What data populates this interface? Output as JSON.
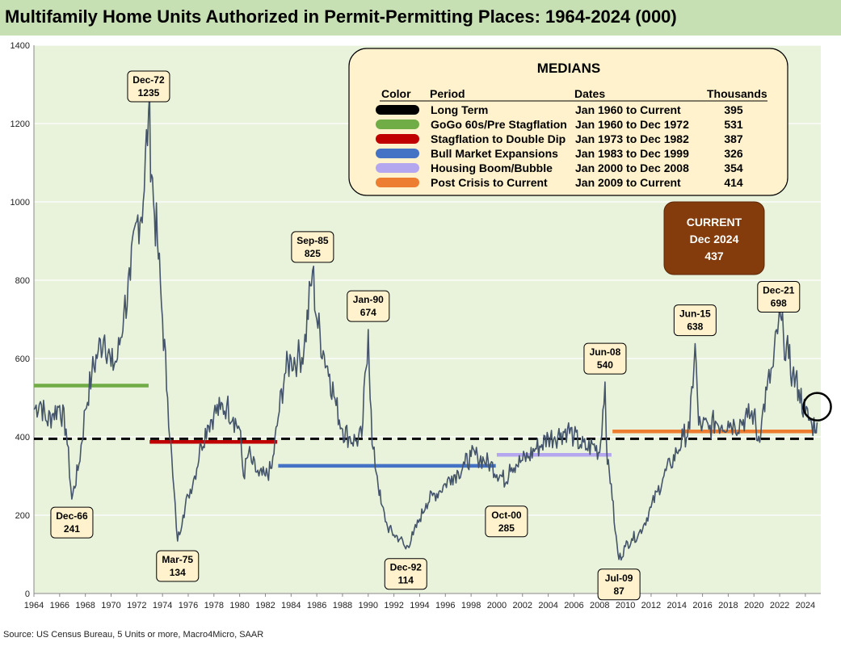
{
  "title": "Multifamily Home Units Authorized in Permit-Permitting Places: 1964-2024 (000)",
  "source": "Source: US Census Bureau, 5 Units or more, Macro4Micro, SAAR",
  "colors": {
    "title_bg": "#c6e0b4",
    "plot_bg": "#e9f3dc",
    "series": "#44546a",
    "box_fill": "#fff2cc",
    "current_fill": "#843c0c"
  },
  "chart_data": {
    "type": "line",
    "title": "Multifamily Home Units Authorized in Permit-Permitting Places: 1964-2024 (000)",
    "xlabel": "",
    "ylabel": "",
    "xlim": [
      1964,
      2025.2
    ],
    "ylim": [
      0,
      1400
    ],
    "x_ticks": [
      "1964",
      "1966",
      "1968",
      "1970",
      "1972",
      "1974",
      "1976",
      "1978",
      "1980",
      "1982",
      "1984",
      "1986",
      "1988",
      "1990",
      "1992",
      "1994",
      "1996",
      "1998",
      "2000",
      "2002",
      "2004",
      "2006",
      "2008",
      "2010",
      "2012",
      "2014",
      "2016",
      "2018",
      "2020",
      "2022",
      "2024"
    ],
    "y_ticks": [
      "0",
      "200",
      "400",
      "600",
      "800",
      "1000",
      "1200",
      "1400"
    ],
    "series_points": [
      [
        1964.0,
        470
      ],
      [
        1964.5,
        490
      ],
      [
        1965.0,
        440
      ],
      [
        1965.5,
        460
      ],
      [
        1966.0,
        480
      ],
      [
        1966.5,
        420
      ],
      [
        1966.95,
        241
      ],
      [
        1967.5,
        330
      ],
      [
        1968.0,
        470
      ],
      [
        1968.5,
        560
      ],
      [
        1969.0,
        620
      ],
      [
        1969.5,
        660
      ],
      [
        1970.0,
        580
      ],
      [
        1970.5,
        600
      ],
      [
        1971.0,
        720
      ],
      [
        1971.5,
        800
      ],
      [
        1972.0,
        950
      ],
      [
        1972.5,
        1000
      ],
      [
        1972.92,
        1235
      ],
      [
        1973.3,
        1000
      ],
      [
        1973.6,
        900
      ],
      [
        1974.0,
        700
      ],
      [
        1974.4,
        500
      ],
      [
        1974.8,
        300
      ],
      [
        1975.17,
        134
      ],
      [
        1975.6,
        200
      ],
      [
        1976.0,
        250
      ],
      [
        1976.5,
        300
      ],
      [
        1977.0,
        380
      ],
      [
        1977.5,
        430
      ],
      [
        1978.0,
        460
      ],
      [
        1978.5,
        470
      ],
      [
        1979.0,
        480
      ],
      [
        1979.5,
        450
      ],
      [
        1980.0,
        420
      ],
      [
        1980.3,
        300
      ],
      [
        1980.7,
        360
      ],
      [
        1981.0,
        330
      ],
      [
        1981.5,
        300
      ],
      [
        1982.0,
        300
      ],
      [
        1982.5,
        320
      ],
      [
        1983.0,
        450
      ],
      [
        1983.5,
        560
      ],
      [
        1984.0,
        600
      ],
      [
        1984.5,
        600
      ],
      [
        1985.0,
        620
      ],
      [
        1985.67,
        825
      ],
      [
        1986.0,
        700
      ],
      [
        1986.5,
        620
      ],
      [
        1987.0,
        560
      ],
      [
        1987.5,
        480
      ],
      [
        1988.0,
        420
      ],
      [
        1988.5,
        400
      ],
      [
        1989.0,
        390
      ],
      [
        1989.5,
        400
      ],
      [
        1990.0,
        674
      ],
      [
        1990.3,
        380
      ],
      [
        1990.7,
        300
      ],
      [
        1991.0,
        230
      ],
      [
        1991.5,
        170
      ],
      [
        1992.0,
        150
      ],
      [
        1992.5,
        140
      ],
      [
        1992.92,
        114
      ],
      [
        1993.5,
        150
      ],
      [
        1994.0,
        190
      ],
      [
        1994.5,
        230
      ],
      [
        1995.0,
        250
      ],
      [
        1995.5,
        260
      ],
      [
        1996.0,
        280
      ],
      [
        1996.5,
        300
      ],
      [
        1997.0,
        310
      ],
      [
        1997.5,
        330
      ],
      [
        1998.0,
        350
      ],
      [
        1998.5,
        350
      ],
      [
        1999.0,
        340
      ],
      [
        1999.5,
        330
      ],
      [
        2000.75,
        285
      ],
      [
        2001.0,
        330
      ],
      [
        2001.5,
        330
      ],
      [
        2002.0,
        340
      ],
      [
        2002.5,
        350
      ],
      [
        2003.0,
        370
      ],
      [
        2003.5,
        380
      ],
      [
        2004.0,
        400
      ],
      [
        2004.5,
        400
      ],
      [
        2005.0,
        410
      ],
      [
        2005.5,
        420
      ],
      [
        2006.0,
        400
      ],
      [
        2006.5,
        380
      ],
      [
        2007.0,
        370
      ],
      [
        2007.5,
        380
      ],
      [
        2008.0,
        360
      ],
      [
        2008.42,
        540
      ],
      [
        2008.6,
        330
      ],
      [
        2008.9,
        280
      ],
      [
        2009.2,
        160
      ],
      [
        2009.5,
        87
      ],
      [
        2010.0,
        120
      ],
      [
        2010.5,
        140
      ],
      [
        2011.0,
        150
      ],
      [
        2011.5,
        180
      ],
      [
        2012.0,
        220
      ],
      [
        2012.5,
        260
      ],
      [
        2013.0,
        300
      ],
      [
        2013.5,
        330
      ],
      [
        2014.0,
        360
      ],
      [
        2014.5,
        400
      ],
      [
        2015.0,
        420
      ],
      [
        2015.42,
        638
      ],
      [
        2015.7,
        430
      ],
      [
        2016.0,
        430
      ],
      [
        2016.5,
        420
      ],
      [
        2017.0,
        440
      ],
      [
        2017.5,
        430
      ],
      [
        2018.0,
        440
      ],
      [
        2018.5,
        430
      ],
      [
        2019.0,
        440
      ],
      [
        2019.5,
        450
      ],
      [
        2020.0,
        460
      ],
      [
        2020.3,
        390
      ],
      [
        2020.6,
        440
      ],
      [
        2021.0,
        520
      ],
      [
        2021.5,
        580
      ],
      [
        2021.92,
        698
      ],
      [
        2022.3,
        660
      ],
      [
        2022.7,
        600
      ],
      [
        2023.0,
        560
      ],
      [
        2023.5,
        520
      ],
      [
        2024.0,
        460
      ],
      [
        2024.5,
        430
      ],
      [
        2024.92,
        437
      ]
    ],
    "median_lines": [
      {
        "name": "Long Term",
        "value": 395,
        "x_range": [
          1964,
          2025
        ],
        "color": "#000000",
        "dashed": true
      },
      {
        "name": "GoGo 60s/Pre Stagflation",
        "value": 531,
        "x_range": [
          1964,
          1972.92
        ],
        "color": "#70ad47",
        "dashed": false
      },
      {
        "name": "Stagflation to Double Dip",
        "value": 387,
        "x_range": [
          1973,
          1982.92
        ],
        "color": "#c00000",
        "dashed": false
      },
      {
        "name": "Bull Market Expansions",
        "value": 326,
        "x_range": [
          1983,
          1999.92
        ],
        "color": "#4472c4",
        "dashed": false
      },
      {
        "name": "Housing Boom/Bubble",
        "value": 354,
        "x_range": [
          2000,
          2008.92
        ],
        "color": "#b4a7f0",
        "dashed": false
      },
      {
        "name": "Post Crisis to Current",
        "value": 414,
        "x_range": [
          2009,
          2024.92
        ],
        "color": "#ed7d31",
        "dashed": false
      }
    ],
    "callouts": [
      {
        "date": "Dec-72",
        "value": "1235",
        "x": 1972.92,
        "y": 1235,
        "side": "above"
      },
      {
        "date": "Dec-66",
        "value": "241",
        "x": 1966.95,
        "y": 241,
        "side": "below"
      },
      {
        "date": "Mar-75",
        "value": "134",
        "x": 1975.17,
        "y": 134,
        "side": "below"
      },
      {
        "date": "Sep-85",
        "value": "825",
        "x": 1985.67,
        "y": 825,
        "side": "above"
      },
      {
        "date": "Jan-90",
        "value": "674",
        "x": 1990.0,
        "y": 674,
        "side": "above"
      },
      {
        "date": "Dec-92",
        "value": "114",
        "x": 1992.92,
        "y": 114,
        "side": "below"
      },
      {
        "date": "Oct-00",
        "value": "285",
        "x": 2000.75,
        "y": 285,
        "side": "below"
      },
      {
        "date": "Jun-08",
        "value": "540",
        "x": 2008.42,
        "y": 540,
        "side": "above"
      },
      {
        "date": "Jul-09",
        "value": "87",
        "x": 2009.5,
        "y": 87,
        "side": "below"
      },
      {
        "date": "Jun-15",
        "value": "638",
        "x": 2015.42,
        "y": 638,
        "side": "above"
      },
      {
        "date": "Dec-21",
        "value": "698",
        "x": 2021.92,
        "y": 698,
        "side": "above"
      }
    ],
    "medians_table": {
      "title": "MEDIANS",
      "headers": [
        "Color",
        "Period",
        "Dates",
        "Thousands"
      ],
      "rows": [
        {
          "color": "#000000",
          "period": "Long Term",
          "dates": "Jan 1960 to Current",
          "thousands": "395"
        },
        {
          "color": "#70ad47",
          "period": "GoGo 60s/Pre Stagflation",
          "dates": "Jan 1960 to Dec 1972",
          "thousands": "531"
        },
        {
          "color": "#c00000",
          "period": "Stagflation to Double Dip",
          "dates": "Jan 1973 to Dec 1982",
          "thousands": "387"
        },
        {
          "color": "#4472c4",
          "period": "Bull Market Expansions",
          "dates": "Jan 1983 to Dec 1999",
          "thousands": "326"
        },
        {
          "color": "#b4a7f0",
          "period": "Housing Boom/Bubble",
          "dates": "Jan 2000 to Dec 2008",
          "thousands": "354"
        },
        {
          "color": "#ed7d31",
          "period": "Post Crisis to Current",
          "dates": "Jan 2009 to Current",
          "thousands": "414"
        }
      ]
    },
    "current": {
      "label": "CURRENT",
      "date": "Dec 2024",
      "value": "437",
      "x": 2024.92,
      "y": 437
    }
  }
}
